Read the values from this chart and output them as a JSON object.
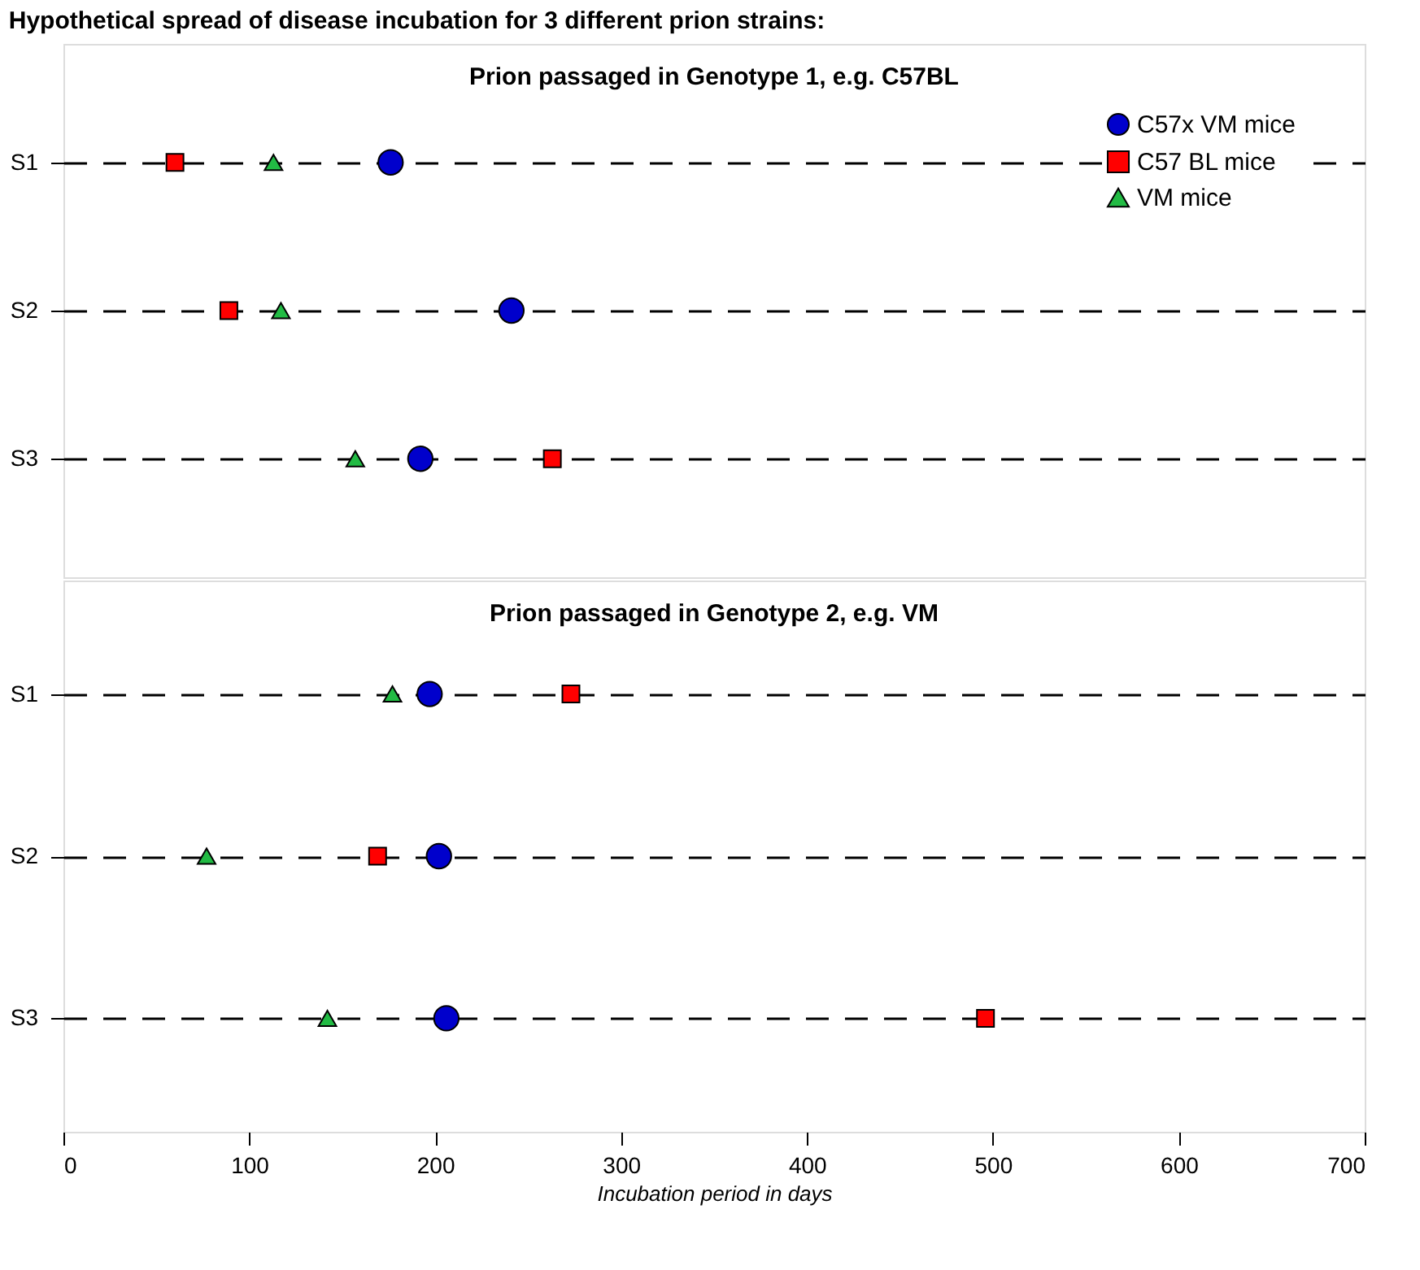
{
  "chart_data": [
    {
      "type": "scatter",
      "orientation": "horizontal",
      "title": "Hypothetical spread of  disease incubation for 3 different prion strains:",
      "subtitle": "Prion passaged in Genotype 1, e.g. C57BL",
      "categories": [
        "S1",
        "S2",
        "S3"
      ],
      "xlim": [
        0,
        700
      ],
      "xticks": [
        0,
        100,
        200,
        300,
        400,
        500,
        600,
        700
      ],
      "tick_labels": "y",
      "grid": "y",
      "legend": "top right",
      "series": [
        {
          "name": "C57x VM mice",
          "color": "#0000cc",
          "marker": "circle",
          "values": [
            176,
            241,
            192
          ]
        },
        {
          "name": "C57 BL mice",
          "color": "#ff0000",
          "marker": "square",
          "values": [
            60,
            89,
            263
          ]
        },
        {
          "name": "VM mice",
          "color": "#22bb44",
          "marker": "triangle",
          "values": [
            113,
            117,
            157
          ]
        }
      ]
    },
    {
      "type": "scatter",
      "orientation": "horizontal",
      "subtitle": "Prion passaged in  Genotype 2, e.g. VM",
      "xlabel": "Incubation period in days",
      "categories": [
        "S1",
        "S2",
        "S3"
      ],
      "xlim": [
        0,
        700
      ],
      "xticks": [
        0,
        100,
        200,
        300,
        400,
        500,
        600,
        700
      ],
      "grid": "y",
      "series": [
        {
          "color": "#0000cc",
          "marker": "circle",
          "values": [
            197,
            202,
            206
          ]
        },
        {
          "color": "#ff0000",
          "marker": "square",
          "values": [
            273,
            169,
            496
          ]
        },
        {
          "color": "#22bb44",
          "marker": "triangle",
          "values": [
            177,
            77,
            142
          ]
        }
      ]
    }
  ]
}
